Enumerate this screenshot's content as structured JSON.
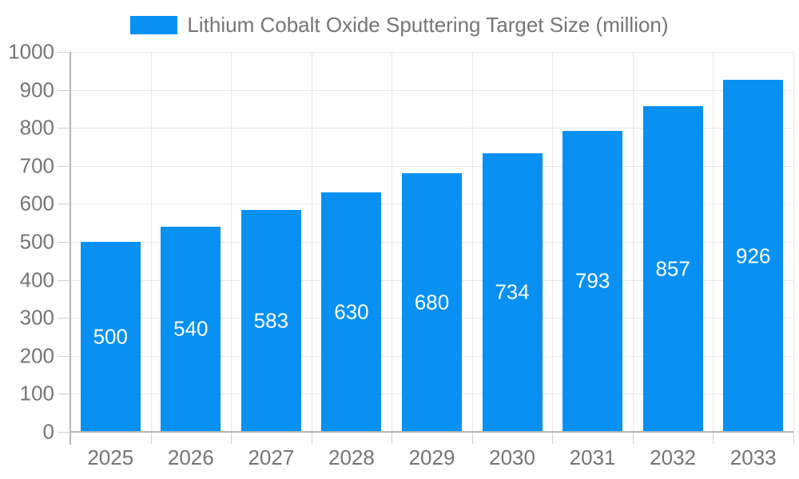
{
  "legend": {
    "label": "Lithium Cobalt Oxide Sputtering Target Size (million)"
  },
  "chart_data": {
    "type": "bar",
    "title": "Lithium Cobalt Oxide Sputtering Target Size (million)",
    "series_name": "Lithium Cobalt Oxide Sputtering Target Size (million)",
    "categories": [
      "2025",
      "2026",
      "2027",
      "2028",
      "2029",
      "2030",
      "2031",
      "2032",
      "2033"
    ],
    "values": [
      500,
      540,
      583,
      630,
      680,
      734,
      793,
      857,
      926
    ],
    "xlabel": "",
    "ylabel": "",
    "ylim": [
      0,
      1000
    ],
    "yticks": [
      0,
      100,
      200,
      300,
      400,
      500,
      600,
      700,
      800,
      900,
      1000
    ],
    "grid": true,
    "legend_position": "top",
    "bar_color": "#0890f3",
    "bar_value_label_color": "#ffffff",
    "axis_label_color": "#757575",
    "gridline_color": "#e7e7e7",
    "axis_line_color": "#b5b5b5"
  }
}
